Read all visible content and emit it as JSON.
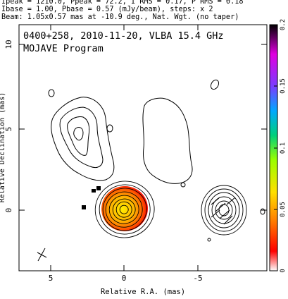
{
  "header": {
    "line1": "Ipeak = 1210.0, Ppeak = 72.2, I RMS = 0.17, P RMS = 0.18",
    "line2": "Ibase = 1.00, Pbase = 0.57 (mJy/beam), steps: x 2",
    "line3": "Beam: 1.05x0.57 mas at -10.9 deg., Nat. Wgt. (no taper)"
  },
  "plot": {
    "title": "0400+258, 2010-11-20, VLBA 15.4 GHz",
    "subtitle": "MOJAVE Program",
    "xlabel": "Relative R.A. (mas)",
    "ylabel": "Relative Declination (mas)",
    "xticks": [
      "5",
      "0",
      "-5"
    ],
    "yticks": [
      "10",
      "5",
      "0"
    ]
  },
  "colorbar": {
    "ticks": [
      "0.2",
      "0.15",
      "0.1",
      "0.05",
      "0"
    ],
    "colors": [
      "#ffffff",
      "#ff0000",
      "#ff7a00",
      "#ffe000",
      "#9aff00",
      "#00d07a",
      "#00a8ff",
      "#7a3cff",
      "#e000e0",
      "#000000"
    ]
  }
}
